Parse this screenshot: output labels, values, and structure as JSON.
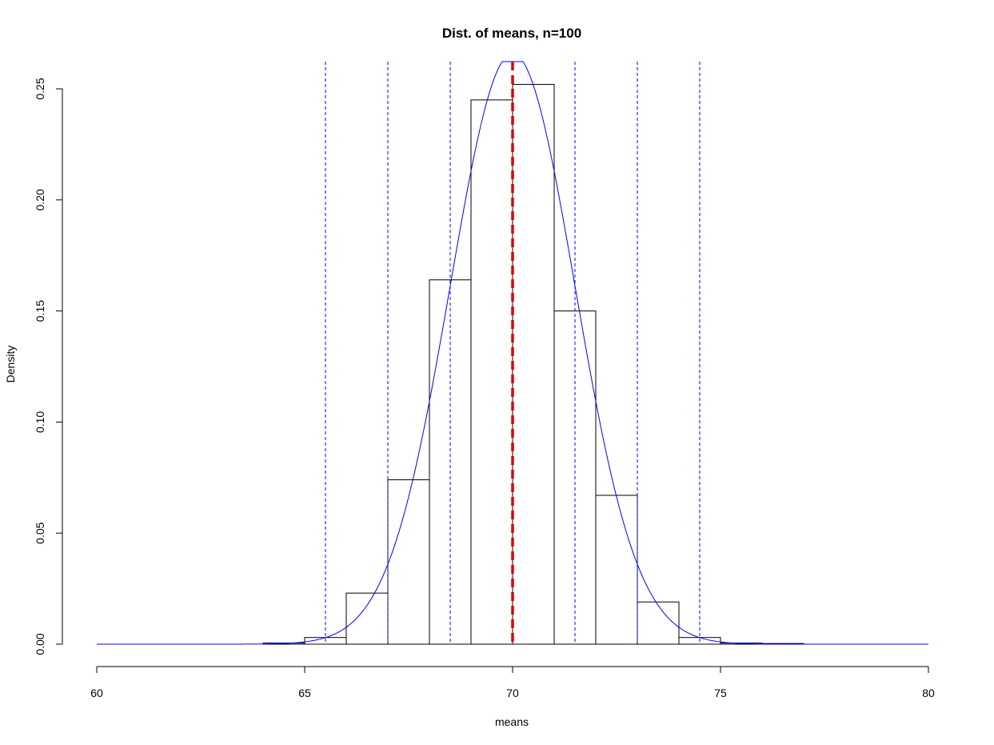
{
  "chart_data": {
    "type": "bar",
    "title": "Dist. of means, n=100",
    "xlabel": "means",
    "ylabel": "Density",
    "xlim": [
      60,
      80
    ],
    "ylim": [
      0,
      0.25
    ],
    "x_ticks": [
      60,
      65,
      70,
      75,
      80
    ],
    "x_tick_labels": [
      "60",
      "65",
      "70",
      "75",
      "80"
    ],
    "y_ticks": [
      0,
      0.05,
      0.1,
      0.15,
      0.2,
      0.25
    ],
    "y_tick_labels": [
      "0.00",
      "0.05",
      "0.10",
      "0.15",
      "0.20",
      "0.25"
    ],
    "grid": false,
    "legend": "none",
    "histogram": {
      "bins": [
        [
          64,
          65,
          0.0005
        ],
        [
          65,
          66,
          0.003
        ],
        [
          66,
          67,
          0.023
        ],
        [
          67,
          68,
          0.074
        ],
        [
          68,
          69,
          0.164
        ],
        [
          69,
          70,
          0.245
        ],
        [
          70,
          71,
          0.252
        ],
        [
          71,
          72,
          0.15
        ],
        [
          72,
          73,
          0.067
        ],
        [
          73,
          74,
          0.019
        ],
        [
          74,
          75,
          0.003
        ],
        [
          75,
          76,
          0.0005
        ],
        [
          76,
          77,
          0.0003
        ]
      ],
      "color": "#000000"
    },
    "density_curve": {
      "distribution": "normal",
      "mean": 70,
      "sd": 1.5,
      "x_range": [
        60,
        80
      ],
      "color": "#0000ff"
    },
    "mean_line": {
      "x": 70,
      "color": "#dd0000",
      "style": "dashed"
    },
    "sd_lines": {
      "x": [
        65.5,
        67.0,
        68.5,
        71.5,
        73.0,
        74.5
      ],
      "color": "#0000ff",
      "style": "dashed"
    }
  }
}
